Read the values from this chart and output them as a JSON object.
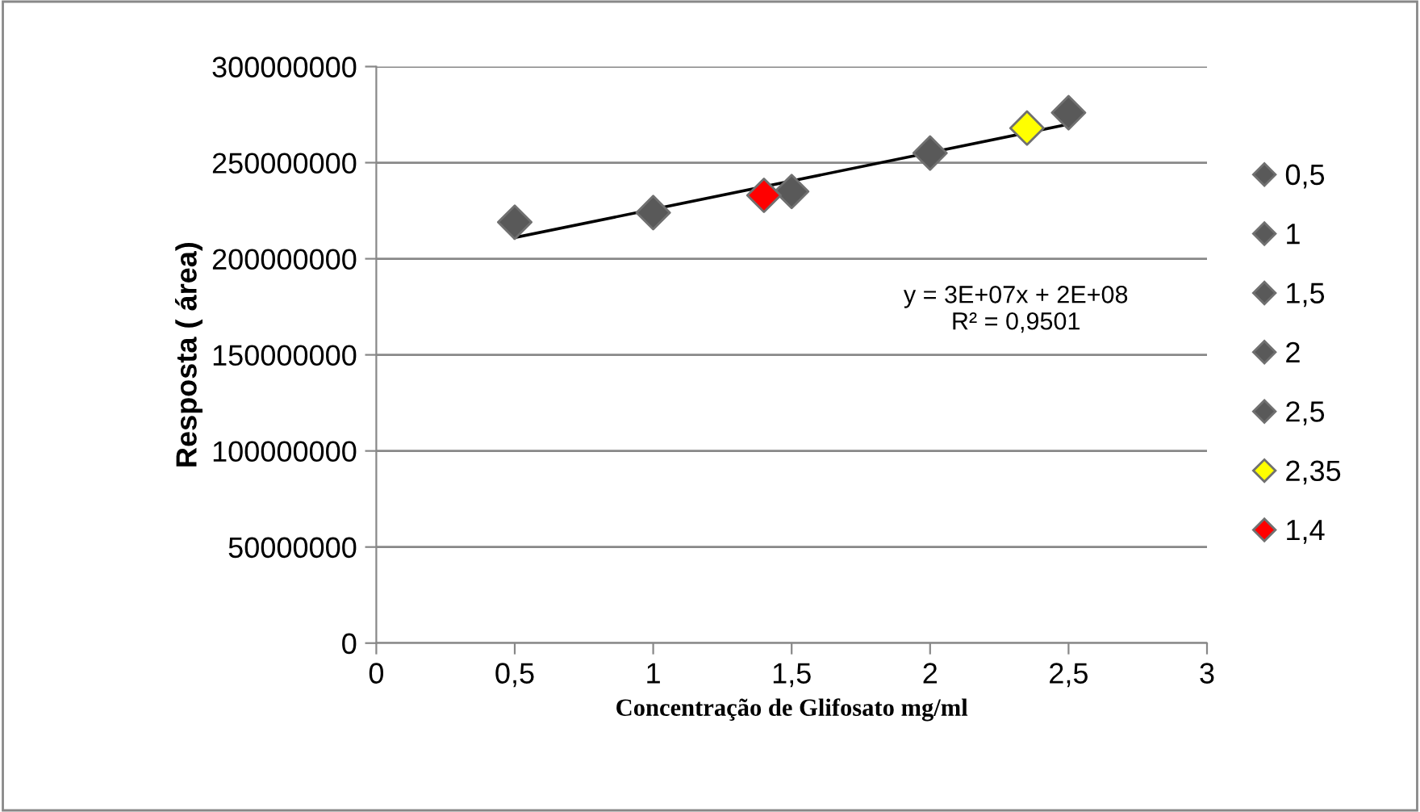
{
  "chart_data": {
    "type": "scatter",
    "xlabel": "Concentração de Glifosato mg/ml",
    "ylabel": "Resposta ( área)",
    "xlim": [
      0,
      3
    ],
    "xticks": [
      0,
      {
        "value": 0.5,
        "label": "0,5"
      },
      1,
      {
        "value": 1.5,
        "label": "1,5"
      },
      2,
      {
        "value": 2.5,
        "label": "2,5"
      },
      3
    ],
    "ylim": [
      0,
      300000000
    ],
    "yticks": [
      0,
      50000000,
      100000000,
      150000000,
      200000000,
      250000000,
      300000000
    ],
    "grid": "y",
    "legend": "right",
    "marker": "diamond",
    "series": [
      {
        "name": "0,5",
        "color": "#595959",
        "x": [
          0.5
        ],
        "values": [
          219000000
        ]
      },
      {
        "name": "1",
        "color": "#595959",
        "x": [
          1
        ],
        "values": [
          224000000
        ]
      },
      {
        "name": "1,5",
        "color": "#595959",
        "x": [
          1.5
        ],
        "values": [
          235000000
        ]
      },
      {
        "name": "2",
        "color": "#595959",
        "x": [
          2
        ],
        "values": [
          255000000
        ]
      },
      {
        "name": "2,5",
        "color": "#595959",
        "x": [
          2.5
        ],
        "values": [
          276000000
        ]
      },
      {
        "name": "2,35",
        "color": "#ffff00",
        "x": [
          2.35
        ],
        "values": [
          268000000
        ]
      },
      {
        "name": "1,4",
        "color": "#ff0000",
        "x": [
          1.4
        ],
        "values": [
          233000000
        ]
      },
      {
        "type": "line",
        "marker": "none",
        "color": "#000000",
        "x": [
          0.5,
          2.5
        ],
        "values": [
          211000000,
          270000000
        ]
      }
    ],
    "annotations": [
      "y = 3E+07x + 2E+08\nR² = 0,9501"
    ]
  }
}
